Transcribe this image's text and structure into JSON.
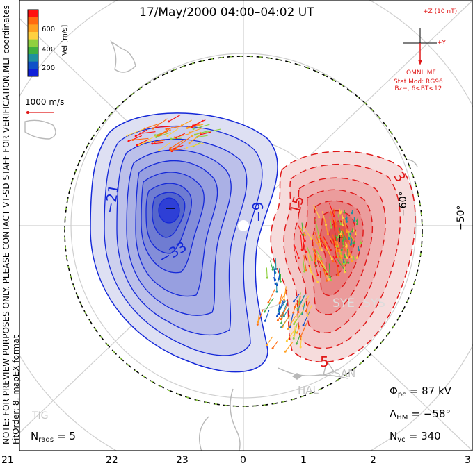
{
  "title": "17/May/2000 04:00–04:02 UT",
  "coordinates_label": "MLT coordinates",
  "preview_note_line1": "NOTE: FOR PREVIEW PURPOSES ONLY. PLEASE CONTACT VT-SD STAFF FOR VERIFICATION.",
  "preview_note_line2": "FitOrder: 8, mapEX format",
  "velocity_scale": {
    "title": "Vel [m/s]",
    "ticks": [
      "600",
      "400",
      "200"
    ],
    "colors": [
      "#ff1010",
      "#ff6a10",
      "#ffa020",
      "#ffd040",
      "#90d040",
      "#40b040",
      "#2090a0",
      "#1050c8",
      "#1020d8"
    ],
    "reference_label": "1000 m/s"
  },
  "imf": {
    "z_label": "+Z (10 nT)",
    "y_label": "+Y",
    "source": "OMNI IMF",
    "stat_model_line1": "Stat Mod: RG96",
    "stat_model_line2": "Bz−, 6<BT<12",
    "color": "#e01818"
  },
  "latitude_labels": [
    "−60°",
    "−50°"
  ],
  "contour_labels": [
    "−21",
    "−33",
    "−9",
    "15",
    "3",
    "5"
  ],
  "contour_colors": {
    "negative": "#1428d8",
    "positive": "#e01818",
    "boundary": "#000000",
    "boundary_dash": "#90d040"
  },
  "stations": [
    "SYE",
    "SYS",
    "HAL",
    "SAN",
    "TIG"
  ],
  "mlt_ticks": [
    "21",
    "22",
    "23",
    "0",
    "1",
    "2",
    "3"
  ],
  "stats": {
    "phi_pc": {
      "symbol": "Φ",
      "sub": "pc",
      "value": "= 87 kV"
    },
    "lambda_hm": {
      "symbol": "Λ",
      "sub": "HM",
      "value": "= −58°"
    },
    "n_vc": {
      "symbol": "N",
      "sub": "vc",
      "value": "= 340"
    },
    "n_rads": {
      "symbol": "N",
      "sub": "rads",
      "value": "= 5"
    }
  }
}
